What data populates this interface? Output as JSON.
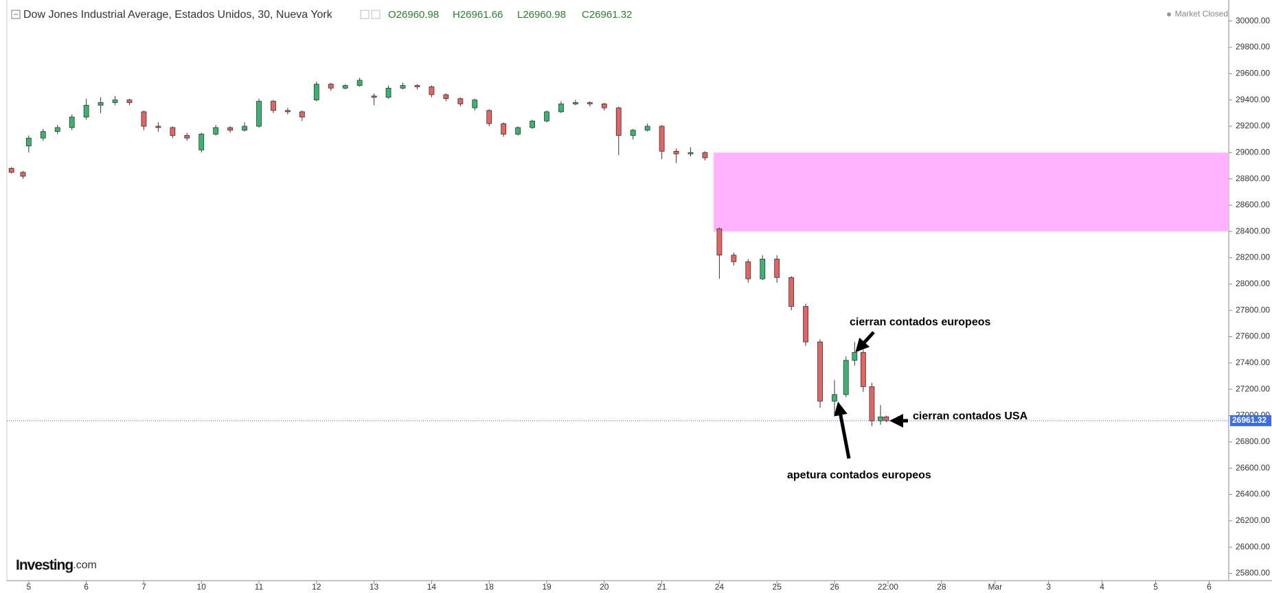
{
  "chart_data": {
    "type": "candlestick",
    "title": "Dow Jones Industrial Average, Estados Unidos, 30, Nueva York",
    "ohlc_header": [
      "O26960.98",
      "H26961.66",
      "L26960.98",
      "C26961.32"
    ],
    "status": "Market Closed",
    "brand": [
      "Investing",
      ".com"
    ],
    "xlim": [
      -0.38,
      20.85
    ],
    "xticks": [
      {
        "value": 0,
        "label": "5"
      },
      {
        "value": 1,
        "label": "6"
      },
      {
        "value": 2,
        "label": "7"
      },
      {
        "value": 3,
        "label": "10"
      },
      {
        "value": 4,
        "label": "11"
      },
      {
        "value": 5,
        "label": "12"
      },
      {
        "value": 6,
        "label": "13"
      },
      {
        "value": 7,
        "label": "14"
      },
      {
        "value": 8,
        "label": "18"
      },
      {
        "value": 9,
        "label": "19"
      },
      {
        "value": 10,
        "label": "20"
      },
      {
        "value": 11,
        "label": "21"
      },
      {
        "value": 12,
        "label": "24"
      },
      {
        "value": 13,
        "label": "25"
      },
      {
        "value": 14,
        "label": "26"
      },
      {
        "value": 14.93,
        "label": "22:00"
      },
      {
        "value": 15.86,
        "label": "28"
      },
      {
        "value": 16.79,
        "label": "Mar"
      },
      {
        "value": 17.72,
        "label": "3"
      },
      {
        "value": 18.65,
        "label": "4"
      },
      {
        "value": 19.58,
        "label": "5"
      },
      {
        "value": 20.51,
        "label": "6"
      }
    ],
    "ylim": [
      25745,
      30160
    ],
    "yticks": [
      {
        "value": 25800,
        "label": "25800.00"
      },
      {
        "value": 26000,
        "label": "26000.00"
      },
      {
        "value": 26200,
        "label": "26200.00"
      },
      {
        "value": 26400,
        "label": "26400.00"
      },
      {
        "value": 26600,
        "label": "26600.00"
      },
      {
        "value": 26800,
        "label": "26800.00"
      },
      {
        "value": 27000,
        "label": "27000.00"
      },
      {
        "value": 27200,
        "label": "27200.00"
      },
      {
        "value": 27400,
        "label": "27400.00"
      },
      {
        "value": 27600,
        "label": "27600.00"
      },
      {
        "value": 27800,
        "label": "27800.00"
      },
      {
        "value": 28000,
        "label": "28000.00"
      },
      {
        "value": 28200,
        "label": "28200.00"
      },
      {
        "value": 28400,
        "label": "28400.00"
      },
      {
        "value": 28600,
        "label": "28600.00"
      },
      {
        "value": 28800,
        "label": "28800.00"
      },
      {
        "value": 29000,
        "label": "29000.00"
      },
      {
        "value": 29200,
        "label": "29200.00"
      },
      {
        "value": 29400,
        "label": "29400.00"
      },
      {
        "value": 29600,
        "label": "29600.00"
      },
      {
        "value": 29800,
        "label": "29800.00"
      },
      {
        "value": 30000,
        "label": "30000.00"
      }
    ],
    "x": [
      -0.3,
      -0.1,
      0,
      0.25,
      0.5,
      0.75,
      1,
      1.25,
      1.5,
      1.75,
      2,
      2.25,
      2.5,
      2.75,
      3,
      3.25,
      3.5,
      3.75,
      4,
      4.25,
      4.5,
      4.75,
      5,
      5.25,
      5.5,
      5.75,
      6,
      6.25,
      6.5,
      6.75,
      7,
      7.25,
      7.5,
      7.75,
      8,
      8.25,
      8.5,
      8.75,
      9,
      9.25,
      9.5,
      9.75,
      10,
      10.25,
      10.5,
      10.75,
      11,
      11.25,
      11.5,
      11.75,
      12,
      12.25,
      12.5,
      12.75,
      13,
      13.25,
      13.5,
      13.75,
      14,
      14.2,
      14.35,
      14.5,
      14.65,
      14.8,
      14.9
    ],
    "open": [
      28880,
      28850,
      29050,
      29110,
      29160,
      29190,
      29270,
      29360,
      29380,
      29400,
      29310,
      29200,
      29190,
      29130,
      29020,
      29140,
      29190,
      29170,
      29200,
      29390,
      29320,
      29310,
      29400,
      29520,
      29490,
      29510,
      29430,
      29420,
      29490,
      29510,
      29500,
      29440,
      29410,
      29340,
      29320,
      29220,
      29140,
      29190,
      29240,
      29310,
      29370,
      29380,
      29370,
      29340,
      29130,
      29170,
      29200,
      29010,
      28990,
      29000,
      28420,
      28220,
      28170,
      28040,
      28190,
      28050,
      27830,
      27560,
      27110,
      27160,
      27420,
      27480,
      27220,
      26960,
      26990
    ],
    "high": [
      28890,
      28860,
      29130,
      29180,
      29210,
      29290,
      29410,
      29420,
      29430,
      29410,
      29320,
      29230,
      29200,
      29150,
      29150,
      29210,
      29200,
      29230,
      29410,
      29400,
      29340,
      29320,
      29540,
      29530,
      29520,
      29570,
      29450,
      29510,
      29530,
      29520,
      29510,
      29450,
      29420,
      29410,
      29330,
      29230,
      29200,
      29250,
      29320,
      29390,
      29400,
      29390,
      29380,
      29350,
      29180,
      29220,
      29210,
      29030,
      29040,
      29010,
      28430,
      28240,
      28190,
      28220,
      28220,
      28060,
      27850,
      27580,
      27270,
      27450,
      27560,
      27500,
      27250,
      27080,
      27000
    ],
    "low": [
      28840,
      28800,
      29000,
      29090,
      29140,
      29170,
      29250,
      29300,
      29360,
      29360,
      29170,
      29160,
      29110,
      29090,
      29000,
      29130,
      29150,
      29160,
      29190,
      29300,
      29290,
      29240,
      29390,
      29470,
      29480,
      29500,
      29360,
      29410,
      29480,
      29480,
      29420,
      29390,
      29350,
      29320,
      29200,
      29120,
      29130,
      29180,
      29230,
      29300,
      29360,
      29350,
      29320,
      28980,
      29100,
      29160,
      28950,
      28920,
      28970,
      28940,
      28040,
      28140,
      28010,
      28030,
      28010,
      27800,
      27530,
      27060,
      27010,
      27140,
      27380,
      27180,
      26920,
      26930,
      26950
    ],
    "close": [
      28850,
      28820,
      29110,
      29160,
      29190,
      29270,
      29360,
      29380,
      29400,
      29380,
      29200,
      29190,
      29130,
      29110,
      29140,
      29190,
      29170,
      29200,
      29390,
      29320,
      29310,
      29270,
      29520,
      29490,
      29510,
      29550,
      29420,
      29490,
      29510,
      29500,
      29440,
      29410,
      29370,
      29400,
      29220,
      29140,
      29190,
      29240,
      29310,
      29370,
      29380,
      29370,
      29340,
      29130,
      29170,
      29200,
      29010,
      28990,
      29000,
      28960,
      28220,
      28170,
      28040,
      28190,
      28050,
      27830,
      27560,
      27110,
      27160,
      27420,
      27480,
      27220,
      26960,
      26990,
      26961.32
    ],
    "up_color": "#3cb371",
    "down_color": "#e06666",
    "zone": {
      "low": 28400,
      "high": 29000,
      "x_start": 11.9,
      "color": "#ffb3ff"
    },
    "last_price": {
      "value": 26961.32,
      "label": "26961.32",
      "color": "#3d6ee0"
    },
    "annotations": [
      "cierran contados europeos",
      "cierran contados USA",
      "apetura contados europeos"
    ]
  }
}
